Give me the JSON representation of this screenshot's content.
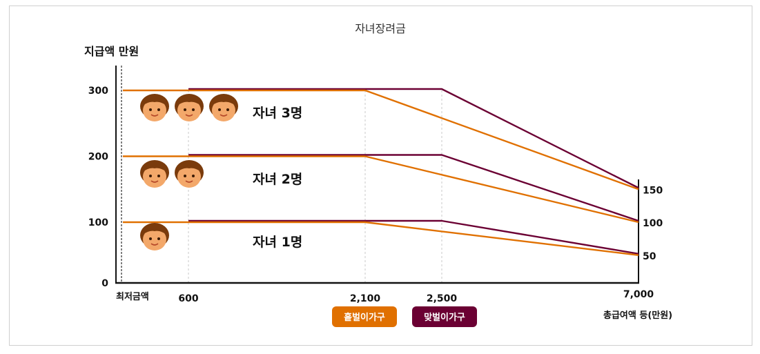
{
  "chart_data": {
    "type": "line",
    "title": "자녀장려금",
    "ylabel": "지급액 만원",
    "xlabel": "총급여액 등(만원)",
    "x_ticks": [
      "600",
      "2,100",
      "2,500",
      "7,000"
    ],
    "x_start_label": "최저금액",
    "y_ticks": [
      "0",
      "100",
      "200",
      "300"
    ],
    "right_ticks": [
      "150",
      "100",
      "50"
    ],
    "ylim": [
      0,
      300
    ],
    "xlim": [
      0,
      7000
    ],
    "legend": [
      "홑벌이가구",
      "맞벌이가구"
    ],
    "legend_position": "bottom-center",
    "colors": {
      "single": "#e07000",
      "dual": "#6b0033"
    },
    "groups": [
      {
        "label": "자녀 3명",
        "faces": 3,
        "single": {
          "x": [
            0,
            2100,
            7000
          ],
          "y": [
            300,
            300,
            150
          ]
        },
        "dual": {
          "x": [
            600,
            2500,
            7000
          ],
          "y": [
            300,
            300,
            150
          ]
        }
      },
      {
        "label": "자녀 2명",
        "faces": 2,
        "single": {
          "x": [
            0,
            2100,
            7000
          ],
          "y": [
            200,
            200,
            100
          ]
        },
        "dual": {
          "x": [
            600,
            2500,
            7000
          ],
          "y": [
            200,
            200,
            100
          ]
        }
      },
      {
        "label": "자녀 1명",
        "faces": 1,
        "single": {
          "x": [
            0,
            2100,
            7000
          ],
          "y": [
            100,
            100,
            50
          ]
        },
        "dual": {
          "x": [
            600,
            2500,
            7000
          ],
          "y": [
            100,
            100,
            50
          ]
        }
      }
    ]
  }
}
